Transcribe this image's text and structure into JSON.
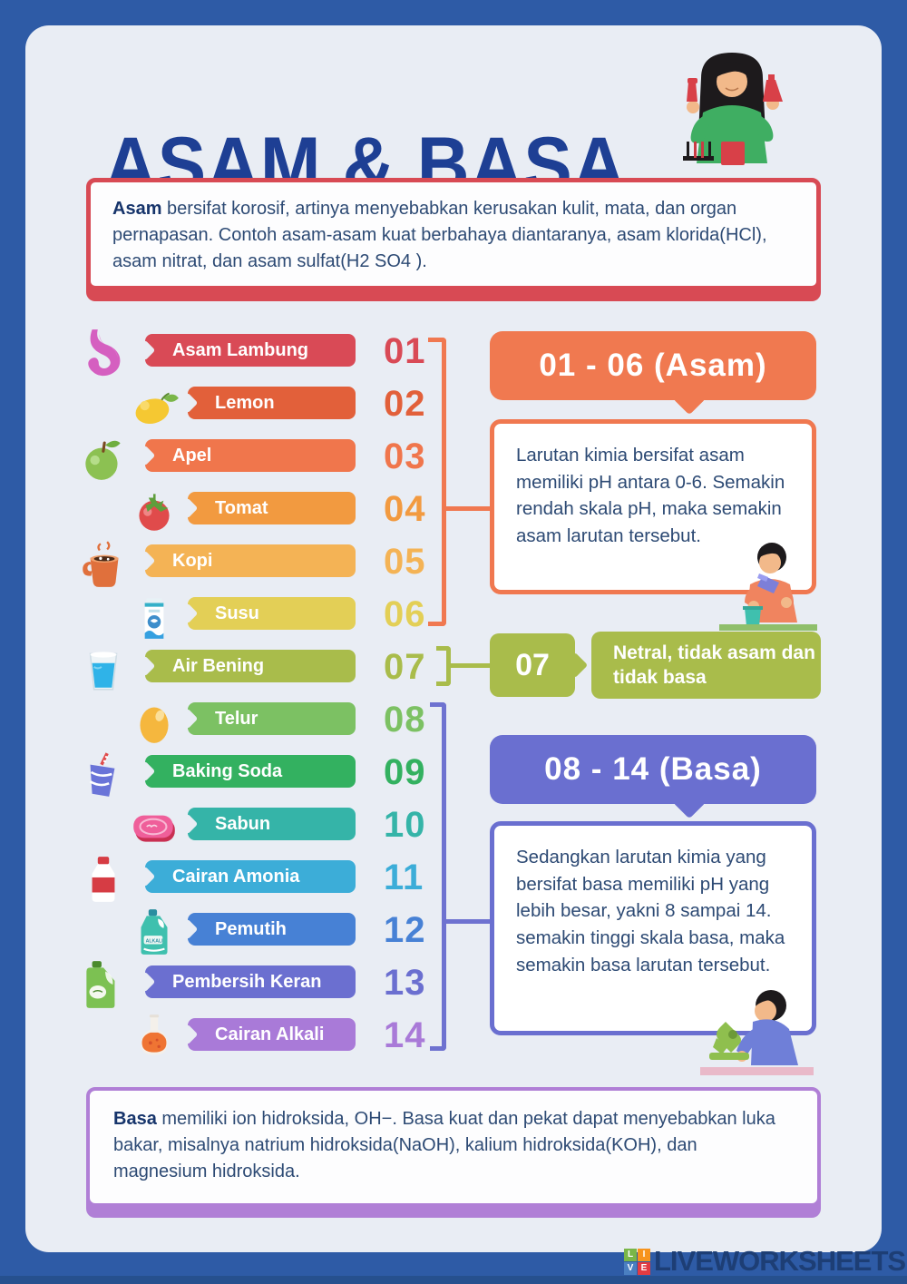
{
  "page": {
    "title": "ASAM & BASA",
    "background_color": "#2e5ba6",
    "paper_color": "#e9edf4",
    "title_color": "#1e3f94"
  },
  "intro_box": {
    "lead": "Asam",
    "text": " bersifat korosif, artinya menyebabkan kerusakan kulit, mata, dan organ pernapasan. Contoh asam-asam kuat berbahaya diantaranya, asam klorida(HCl), asam nitrat, dan asam sulfat(H2 SO4 ).",
    "border_color": "#d84a54"
  },
  "scale": {
    "rows": [
      {
        "number": "01",
        "label": "Asam Lambung",
        "color": "#d94a56",
        "icon": "stomach-icon",
        "indent": false
      },
      {
        "number": "02",
        "label": "Lemon",
        "color": "#e2603a",
        "icon": "lemon-icon",
        "indent": true
      },
      {
        "number": "03",
        "label": "Apel",
        "color": "#f0764c",
        "icon": "apple-icon",
        "indent": false
      },
      {
        "number": "04",
        "label": "Tomat",
        "color": "#f29a40",
        "icon": "tomato-icon",
        "indent": true
      },
      {
        "number": "05",
        "label": "Kopi",
        "color": "#f4b355",
        "icon": "coffee-mug-icon",
        "indent": false
      },
      {
        "number": "06",
        "label": "Susu",
        "color": "#e3cf56",
        "icon": "milk-carton-icon",
        "indent": true
      },
      {
        "number": "07",
        "label": "Air Bening",
        "color": "#a9bc4b",
        "icon": "water-glass-icon",
        "indent": false
      },
      {
        "number": "08",
        "label": "Telur",
        "color": "#7cc163",
        "icon": "egg-icon",
        "indent": true
      },
      {
        "number": "09",
        "label": "Baking Soda",
        "color": "#33b160",
        "icon": "soda-cup-icon",
        "indent": false
      },
      {
        "number": "10",
        "label": "Sabun",
        "color": "#35b4a8",
        "icon": "soap-icon",
        "indent": true
      },
      {
        "number": "11",
        "label": "Cairan Amonia",
        "color": "#3cadd8",
        "icon": "ammonia-bottle-icon",
        "indent": false
      },
      {
        "number": "12",
        "label": "Pemutih",
        "color": "#4781d5",
        "icon": "bleach-jug-icon",
        "indent": true
      },
      {
        "number": "13",
        "label": "Pembersih Keran",
        "color": "#6b6fd0",
        "icon": "detergent-jug-icon",
        "indent": false
      },
      {
        "number": "14",
        "label": "Cairan Alkali",
        "color": "#a97ad8",
        "icon": "alkali-flask-icon",
        "indent": true
      }
    ]
  },
  "asam_section": {
    "header": "01 - 06 (Asam)",
    "header_color": "#f07950",
    "body": "Larutan kimia bersifat asam memiliki pH antara 0-6. Semakin rendah skala pH, maka semakin asam larutan tersebut."
  },
  "netral_section": {
    "number": "07",
    "text": "Netral, tidak asam dan tidak basa",
    "color": "#a9bc4b"
  },
  "basa_section": {
    "header": "08 - 14 (Basa)",
    "header_color": "#6a6fd0",
    "body": "Sedangkan larutan kimia yang bersifat basa memiliki pH yang lebih besar, yakni 8 sampai 14. semakin tinggi skala basa, maka semakin basa larutan tersebut."
  },
  "basa_bottom_box": {
    "lead": "Basa",
    "text": " memiliki ion hidroksida, OH−. Basa kuat dan pekat dapat menyebabkan luka bakar, misalnya natrium hidroksida(NaOH), kalium hidroksida(KOH), dan magnesium hidroksida.",
    "border_color": "#b07fd6"
  },
  "footer": {
    "brand": "LIVEWORKSHEETS",
    "logo_letters": [
      "L",
      "I",
      "V",
      "E"
    ],
    "logo_colors": [
      "#7ab648",
      "#f7941d",
      "#4a7fc1",
      "#e23b42"
    ]
  }
}
